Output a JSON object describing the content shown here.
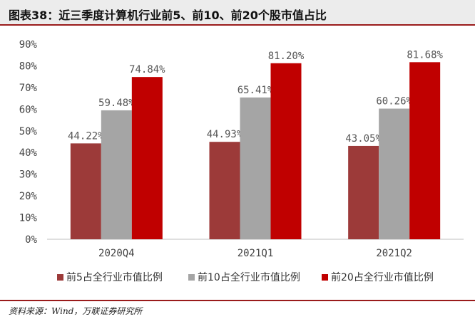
{
  "header": {
    "title": "图表38：近三季度计算机行业前5、前10、前20个股市值占比"
  },
  "footer": {
    "source": "资料来源：Wind，万联证券研究所"
  },
  "chart_data": {
    "type": "bar",
    "categories": [
      "2020Q4",
      "2021Q1",
      "2021Q2"
    ],
    "series": [
      {
        "name": "前5占全行业市值比例",
        "values": [
          44.22,
          44.93,
          43.05
        ],
        "labels": [
          "44.22%",
          "44.93%",
          "43.05%"
        ],
        "color": "#9c3a39"
      },
      {
        "name": "前10占全行业市值比例",
        "values": [
          59.48,
          65.41,
          60.26
        ],
        "labels": [
          "59.48%",
          "65.41%",
          "60.26%"
        ],
        "color": "#a5a5a5"
      },
      {
        "name": "前20占全行业市值比例",
        "values": [
          74.84,
          81.2,
          81.68
        ],
        "labels": [
          "74.84%",
          "81.20%",
          "81.68%"
        ],
        "color": "#c00000"
      }
    ],
    "yticks": [
      "0%",
      "10%",
      "20%",
      "30%",
      "40%",
      "50%",
      "60%",
      "70%",
      "80%",
      "90%"
    ],
    "ylim": [
      0,
      90
    ],
    "ylabel": "",
    "xlabel": "",
    "grid": false,
    "legend": "bottom"
  }
}
